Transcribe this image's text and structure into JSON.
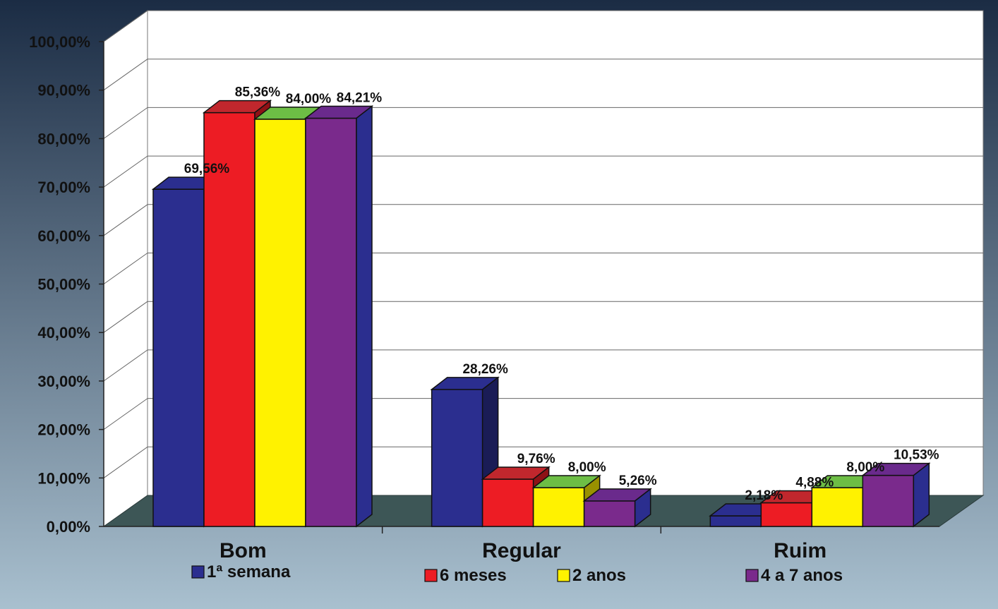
{
  "chart_data": {
    "type": "bar",
    "categories": [
      "Bom",
      "Regular",
      "Ruim"
    ],
    "series": [
      {
        "name": "1ª semana",
        "values": [
          69.56,
          28.26,
          2.18
        ],
        "labels": [
          "69,56%",
          "28,26%",
          "2,18%"
        ],
        "color": "#2b2e8f"
      },
      {
        "name": "6 meses",
        "values": [
          85.36,
          9.76,
          4.88
        ],
        "labels": [
          "85,36%",
          "9,76%",
          "4,88%"
        ],
        "color": "#ed1c24"
      },
      {
        "name": "2 anos",
        "values": [
          84.0,
          8.0,
          8.0
        ],
        "labels": [
          "84,00%",
          "8,00%",
          "8,00%"
        ],
        "color": "#fff200"
      },
      {
        "name": "4 a 7 anos",
        "values": [
          84.21,
          5.26,
          10.53
        ],
        "labels": [
          "84,21%",
          "5,26%",
          "10,53%"
        ],
        "color": "#7a2a8c"
      }
    ],
    "top_colors": [
      "#2b2e8f",
      "#c1272d",
      "#6dbe45",
      "#6a2a8c"
    ],
    "ylim": [
      0,
      100
    ],
    "yticks": [
      "0,00%",
      "10,00%",
      "20,00%",
      "30,00%",
      "40,00%",
      "50,00%",
      "60,00%",
      "70,00%",
      "80,00%",
      "90,00%",
      "100,00%"
    ],
    "grid": true,
    "legend_position": "bottom",
    "style": "3d",
    "title": "",
    "xlabel": "",
    "ylabel": ""
  },
  "colors": {
    "background_top": "#1b2c44",
    "background_bottom": "#a9c0cf",
    "floor": "#3d5656",
    "plot_wall": "#ffffff"
  }
}
